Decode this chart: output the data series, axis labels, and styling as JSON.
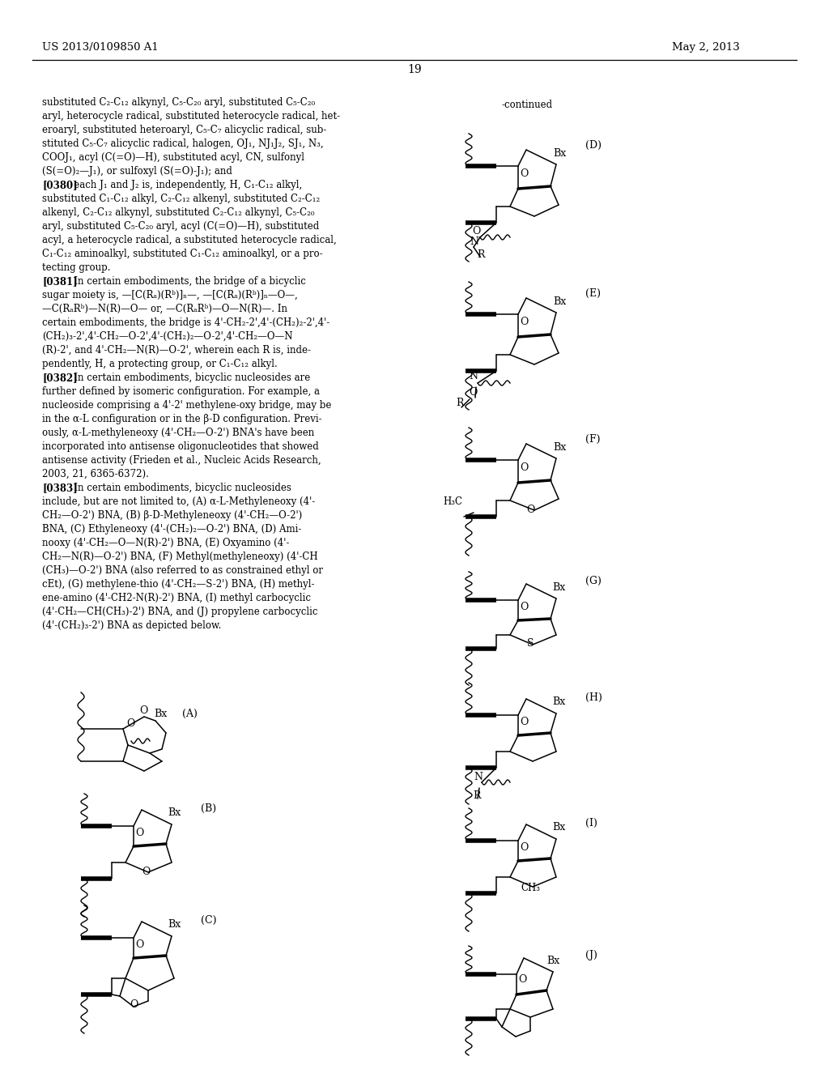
{
  "background_color": "#ffffff",
  "page_number": "19",
  "header_left": "US 2013/0109850 A1",
  "header_right": "May 2, 2013",
  "continued_label": "-continued",
  "body_text_lines": [
    "substituted C₂-C₁₂ alkynyl, C₅-C₂₀ aryl, substituted C₅-C₂₀",
    "aryl, heterocycle radical, substituted heterocycle radical, het-",
    "eroaryl, substituted heteroaryl, C₅-C₇ alicyclic radical, sub-",
    "stituted C₅-C₇ alicyclic radical, halogen, OJ₁, NJ₁J₂, SJ₁, N₃,",
    "COOJ₁, acyl (C(=O)—H), substituted acyl, CN, sulfonyl",
    "(S(=O)₂—J₁), or sulfoxyl (S(=O)-J₁); and",
    "[0380]   each J₁ and J₂ is, independently, H, C₁-C₁₂ alkyl,",
    "substituted C₁-C₁₂ alkyl, C₂-C₁₂ alkenyl, substituted C₂-C₁₂",
    "alkenyl, C₂-C₁₂ alkynyl, substituted C₂-C₁₂ alkynyl, C₅-C₂₀",
    "aryl, substituted C₅-C₂₀ aryl, acyl (C(=O)—H), substituted",
    "acyl, a heterocycle radical, a substituted heterocycle radical,",
    "C₁-C₁₂ aminoalkyl, substituted C₁-C₁₂ aminoalkyl, or a pro-",
    "tecting group.",
    "[0381]   In certain embodiments, the bridge of a bicyclic",
    "sugar moiety is, —[C(Rₐ)(Rᵇ)]ₙ—, —[C(Rₐ)(Rᵇ)]ₙ—O—,",
    "—C(RₐRᵇ)—N(R)—O— or, —C(RₐRᵇ)—O—N(R)—. In",
    "certain embodiments, the bridge is 4'-CH₂-2',4'-(CH₂)₂-2',4'-",
    "(CH₂)₃-2',4'-CH₂—O-2',4'-(CH₂)₂—O-2',4'-CH₂—O—N",
    "(R)-2', and 4'-CH₂—N(R)—O-2', wherein each R is, inde-",
    "pendently, H, a protecting group, or C₁-C₁₂ alkyl.",
    "[0382]   In certain embodiments, bicyclic nucleosides are",
    "further defined by isomeric configuration. For example, a",
    "nucleoside comprising a 4'-2' methylene-oxy bridge, may be",
    "in the α-L configuration or in the β-D configuration. Previ-",
    "ously, α-L-methyleneoxy (4'-CH₂—O-2') BNA's have been",
    "incorporated into antisense oligonucleotides that showed",
    "antisense activity (Frieden et al., Nucleic Acids Research,",
    "2003, 21, 6365-6372).",
    "[0383]   In certain embodiments, bicyclic nucleosides",
    "include, but are not limited to, (A) α-L-Methyleneoxy (4'-",
    "CH₂—O-2') BNA, (B) β-D-Methyleneoxy (4'-CH₂—O-2')",
    "BNA, (C) Ethyleneoxy (4'-(CH₂)₂—O-2') BNA, (D) Ami-",
    "nooxy (4'-CH₂—O—N(R)-2') BNA, (E) Oxyamino (4'-",
    "CH₂—N(R)—O-2') BNA, (F) Methyl(methyleneoxy) (4'-CH",
    "(CH₃)—O-2') BNA (also referred to as constrained ethyl or",
    "cEt), (G) methylene-thio (4'-CH₂—S-2') BNA, (H) methyl-",
    "ene-amino (4'-CH2-N(R)-2') BNA, (I) methyl carbocyclic",
    "(4'-CH₂—CH(CH₃)-2') BNA, and (J) propylene carbocyclic",
    "(4'-(CH₂)₃-2') BNA as depicted below."
  ],
  "bold_paragraphs": [
    "[0380]",
    "[0381]",
    "[0382]",
    "[0383]"
  ]
}
